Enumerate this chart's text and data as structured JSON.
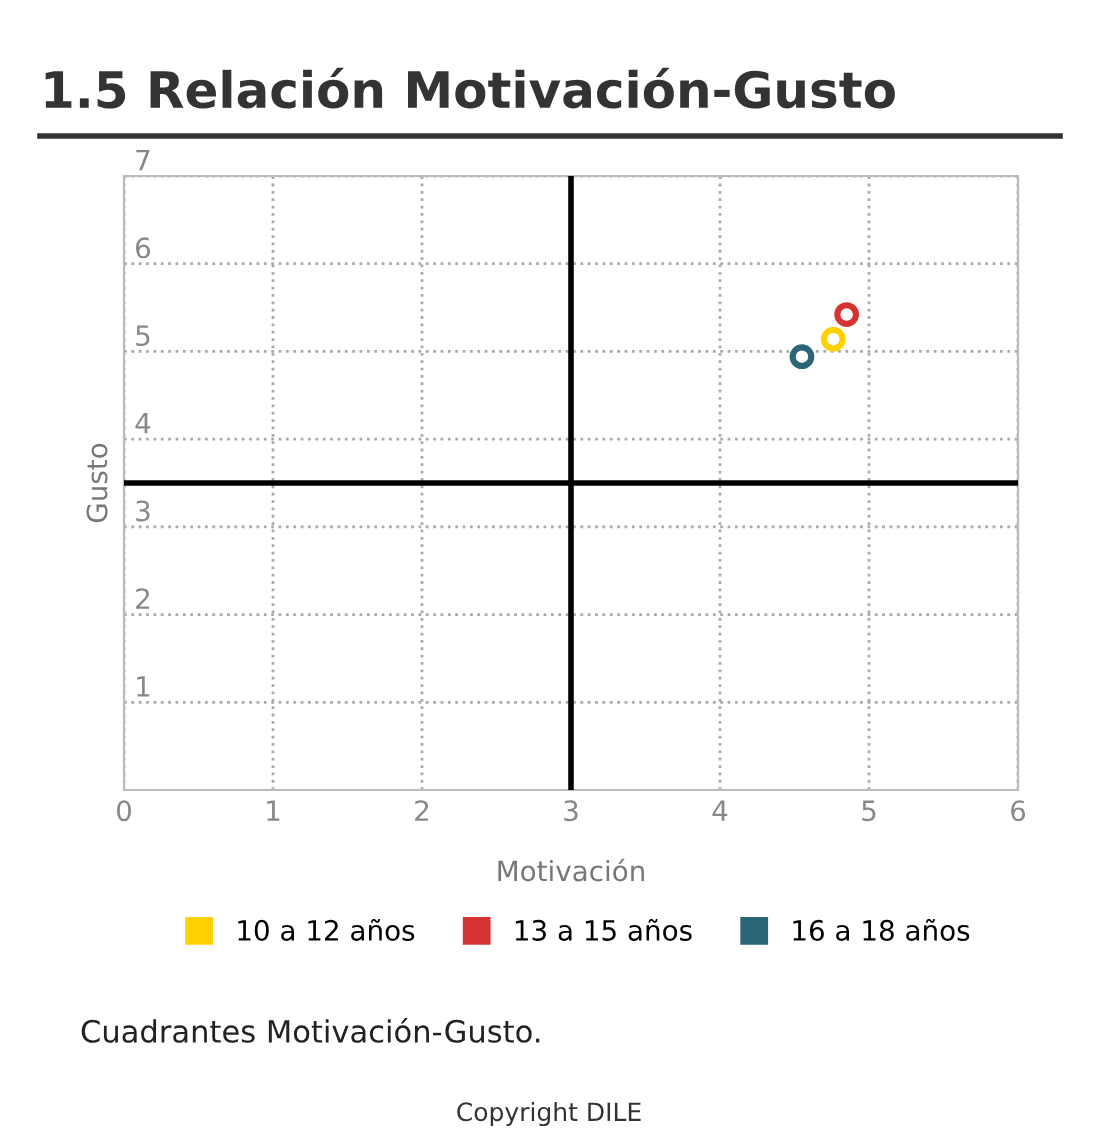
{
  "chart_data": {
    "type": "scatter",
    "title": "1.5 Relación Motivación-Gusto",
    "xlabel": "Motivación",
    "ylabel": "Gusto",
    "xlim": [
      0,
      6
    ],
    "ylim": [
      0,
      7
    ],
    "xticks": [
      0,
      1,
      2,
      3,
      4,
      5,
      6
    ],
    "yticks": [
      1,
      2,
      3,
      4,
      5,
      6,
      7
    ],
    "series": [
      {
        "name": "10 a 12 años",
        "color": "#ffd200",
        "x": [
          4.76
        ],
        "values": [
          5.14
        ]
      },
      {
        "name": "13 a 15 años",
        "color": "#d63333",
        "x": [
          4.85
        ],
        "values": [
          5.42
        ]
      },
      {
        "name": "16 a 18 años",
        "color": "#2a6675",
        "x": [
          4.55
        ],
        "values": [
          4.94
        ]
      }
    ],
    "ref_lines": [
      {
        "axis": "x",
        "value": 3,
        "color": "#000000",
        "line_style": "solid"
      },
      {
        "axis": "y",
        "value": 3.5,
        "color": "#000000",
        "line_style": "solid"
      }
    ],
    "marker": "circle",
    "grid": true,
    "legend": "bottom",
    "annotations": [
      "Cuadrantes Motivación-Gusto.",
      "Copyright DILE"
    ]
  }
}
